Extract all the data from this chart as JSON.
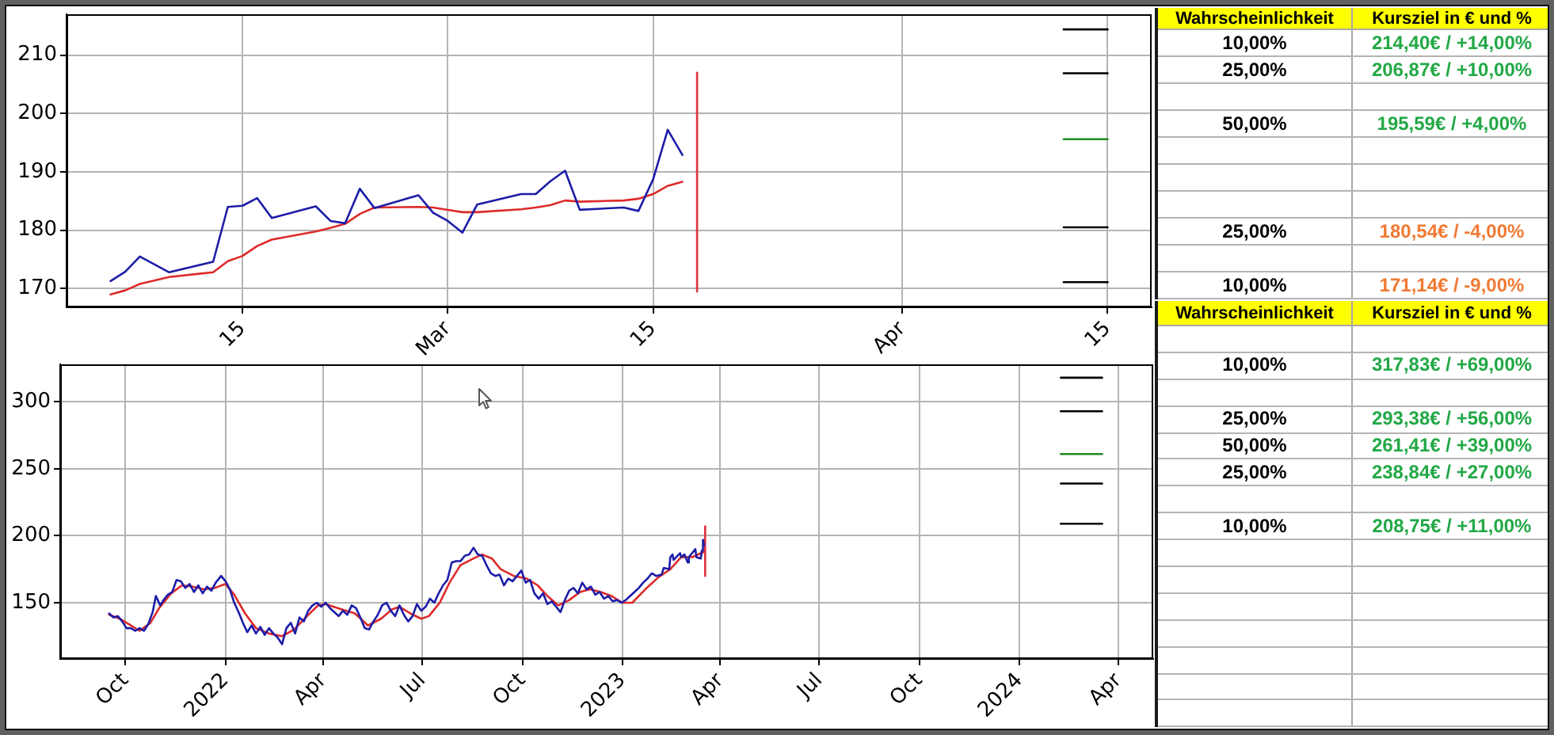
{
  "chart_data": [
    {
      "type": "line",
      "xlim": [
        "2023-02-03",
        "2023-04-18"
      ],
      "ylim": [
        166.8,
        217
      ],
      "xticks": [
        {
          "value": "2023-02-15",
          "label": "15"
        },
        {
          "value": "2023-03-01",
          "label": "Mar"
        },
        {
          "value": "2023-03-15",
          "label": "15"
        },
        {
          "value": "2023-04-01",
          "label": "Apr"
        },
        {
          "value": "2023-04-15",
          "label": "15"
        }
      ],
      "yticks": [
        170,
        180,
        190,
        200,
        210
      ],
      "grid": true,
      "series": [
        {
          "color": "#1c1ca8",
          "x": [
            "2023-02-06",
            "2023-02-07",
            "2023-02-08",
            "2023-02-10",
            "2023-02-13",
            "2023-02-14",
            "2023-02-15",
            "2023-02-16",
            "2023-02-17",
            "2023-02-20",
            "2023-02-21",
            "2023-02-22",
            "2023-02-23",
            "2023-02-24",
            "2023-02-27",
            "2023-02-28",
            "2023-03-01",
            "2023-03-02",
            "2023-03-03",
            "2023-03-06",
            "2023-03-07",
            "2023-03-08",
            "2023-03-09",
            "2023-03-10",
            "2023-03-13",
            "2023-03-14",
            "2023-03-15",
            "2023-03-16",
            "2023-03-17"
          ],
          "values": [
            171.3,
            172.9,
            175.5,
            172.8,
            174.6,
            184.0,
            184.2,
            185.5,
            182.1,
            184.1,
            181.6,
            181.2,
            187.1,
            183.8,
            186.0,
            183.0,
            181.6,
            179.6,
            184.4,
            186.2,
            186.2,
            188.4,
            190.2,
            183.5,
            183.9,
            183.3,
            188.7,
            197.2,
            192.9
          ]
        },
        {
          "color": "#dd2a2a",
          "x": [
            "2023-02-06",
            "2023-02-07",
            "2023-02-08",
            "2023-02-10",
            "2023-02-13",
            "2023-02-14",
            "2023-02-15",
            "2023-02-16",
            "2023-02-17",
            "2023-02-20",
            "2023-02-21",
            "2023-02-22",
            "2023-02-23",
            "2023-02-24",
            "2023-02-27",
            "2023-02-28",
            "2023-03-01",
            "2023-03-02",
            "2023-03-03",
            "2023-03-06",
            "2023-03-07",
            "2023-03-08",
            "2023-03-09",
            "2023-03-10",
            "2023-03-13",
            "2023-03-14",
            "2023-03-15",
            "2023-03-16",
            "2023-03-17"
          ],
          "values": [
            169.0,
            169.7,
            170.8,
            172.0,
            172.8,
            174.7,
            175.6,
            177.3,
            178.4,
            179.8,
            180.4,
            181.1,
            182.8,
            183.9,
            184.0,
            183.9,
            183.5,
            183.1,
            183.1,
            183.6,
            183.9,
            184.3,
            185.1,
            184.9,
            185.1,
            185.4,
            186.2,
            187.6,
            188.3
          ]
        },
        {
          "color": "#e0303c",
          "x": [
            "2023-03-18",
            "2023-03-18"
          ],
          "values": [
            169.5,
            207
          ]
        },
        {
          "color": "#000000",
          "x": [
            "2023-04-12",
            "2023-04-15"
          ],
          "values": [
            214.4,
            214.4
          ]
        },
        {
          "color": "#000000",
          "x": [
            "2023-04-12",
            "2023-04-15"
          ],
          "values": [
            206.9,
            206.9
          ]
        },
        {
          "color": "#1f8a1f",
          "x": [
            "2023-04-12",
            "2023-04-15"
          ],
          "values": [
            195.6,
            195.6
          ]
        },
        {
          "color": "#000000",
          "x": [
            "2023-04-12",
            "2023-04-15"
          ],
          "values": [
            180.5,
            180.5
          ]
        },
        {
          "color": "#000000",
          "x": [
            "2023-04-12",
            "2023-04-15"
          ],
          "values": [
            171.1,
            171.1
          ]
        }
      ]
    },
    {
      "type": "other",
      "annotations": [
        "Wahrscheinlichkeit",
        "Kursziel in € und %"
      ],
      "categories": [
        "10,00%",
        "25,00%",
        "50,00%",
        "25,00%",
        "10,00%"
      ],
      "values": [
        14,
        10,
        4,
        -4,
        -9
      ],
      "value_labels": [
        "214,40€ / +14,00%",
        "206,87€ / +10,00%",
        "195,59€ / +4,00%",
        "180,54€ / -4,00%",
        "171,14€ / -9,00%"
      ]
    },
    {
      "type": "line",
      "xlim": [
        "2021-08-02",
        "2024-05-03"
      ],
      "ylim": [
        108,
        328
      ],
      "xticks": [
        {
          "value": "2021-10-01",
          "label": "Oct"
        },
        {
          "value": "2022-01-01",
          "label": "2022"
        },
        {
          "value": "2022-04-01",
          "label": "Apr"
        },
        {
          "value": "2022-07-01",
          "label": "Jul"
        },
        {
          "value": "2022-10-01",
          "label": "Oct"
        },
        {
          "value": "2023-01-01",
          "label": "2023"
        },
        {
          "value": "2023-04-01",
          "label": "Apr"
        },
        {
          "value": "2023-07-01",
          "label": "Jul"
        },
        {
          "value": "2023-10-01",
          "label": "Oct"
        },
        {
          "value": "2024-01-01",
          "label": "2024"
        },
        {
          "value": "2024-04-01",
          "label": "Apr"
        }
      ],
      "yticks": [
        150,
        200,
        250,
        300
      ],
      "grid": true,
      "series": [
        {
          "color": "#1c1ca8",
          "x": [
            "2021-09-16",
            "2021-09-20",
            "2021-09-24",
            "2021-09-28",
            "2021-10-02",
            "2021-10-06",
            "2021-10-10",
            "2021-10-14",
            "2021-10-18",
            "2021-10-22",
            "2021-10-26",
            "2021-10-29",
            "2021-11-02",
            "2021-11-05",
            "2021-11-09",
            "2021-11-13",
            "2021-11-17",
            "2021-11-21",
            "2021-11-25",
            "2021-11-29",
            "2021-12-03",
            "2021-12-07",
            "2021-12-11",
            "2021-12-15",
            "2021-12-19",
            "2021-12-23",
            "2021-12-28",
            "2022-01-01",
            "2022-01-05",
            "2022-01-09",
            "2022-01-13",
            "2022-01-17",
            "2022-01-21",
            "2022-01-25",
            "2022-01-29",
            "2022-02-02",
            "2022-02-06",
            "2022-02-10",
            "2022-02-14",
            "2022-02-18",
            "2022-02-22",
            "2022-02-26",
            "2022-03-02",
            "2022-03-06",
            "2022-03-10",
            "2022-03-14",
            "2022-03-18",
            "2022-03-22",
            "2022-03-26",
            "2022-03-30",
            "2022-04-03",
            "2022-04-07",
            "2022-04-11",
            "2022-04-15",
            "2022-04-19",
            "2022-04-23",
            "2022-04-27",
            "2022-05-01",
            "2022-05-05",
            "2022-05-09",
            "2022-05-13",
            "2022-05-17",
            "2022-05-21",
            "2022-05-25",
            "2022-05-29",
            "2022-06-02",
            "2022-06-06",
            "2022-06-10",
            "2022-06-14",
            "2022-06-18",
            "2022-06-22",
            "2022-06-26",
            "2022-06-30",
            "2022-07-04",
            "2022-07-08",
            "2022-07-12",
            "2022-07-16",
            "2022-07-20",
            "2022-07-24",
            "2022-07-28",
            "2022-08-01",
            "2022-08-05",
            "2022-08-09",
            "2022-08-13",
            "2022-08-17",
            "2022-08-21",
            "2022-08-25",
            "2022-08-29",
            "2022-09-02",
            "2022-09-06",
            "2022-09-10",
            "2022-09-14",
            "2022-09-18",
            "2022-09-22",
            "2022-09-26",
            "2022-09-30",
            "2022-10-04",
            "2022-10-08",
            "2022-10-12",
            "2022-10-16",
            "2022-10-20",
            "2022-10-24",
            "2022-10-28",
            "2022-11-01",
            "2022-11-05",
            "2022-11-09",
            "2022-11-13",
            "2022-11-17",
            "2022-11-21",
            "2022-11-25",
            "2022-11-29",
            "2022-12-03",
            "2022-12-07",
            "2022-12-11",
            "2022-12-15",
            "2022-12-19",
            "2022-12-23",
            "2022-12-27",
            "2022-12-31",
            "2023-01-04",
            "2023-01-08",
            "2023-01-12",
            "2023-01-16",
            "2023-01-20",
            "2023-01-24",
            "2023-01-28",
            "2023-02-01",
            "2023-02-06",
            "2023-02-08",
            "2023-02-13",
            "2023-02-14",
            "2023-02-16",
            "2023-02-17",
            "2023-02-23",
            "2023-02-24",
            "2023-02-27",
            "2023-03-02",
            "2023-03-03",
            "2023-03-09",
            "2023-03-10",
            "2023-03-14",
            "2023-03-15",
            "2023-03-16",
            "2023-03-17"
          ],
          "values": [
            142,
            139,
            140,
            136,
            131,
            131,
            129,
            131,
            129,
            134,
            143,
            155,
            148,
            152,
            156,
            158,
            167,
            166,
            161,
            164,
            158,
            163,
            157,
            162,
            159,
            165,
            170,
            166,
            160,
            150,
            143,
            135,
            128,
            133,
            127,
            132,
            126,
            131,
            127,
            124,
            119,
            131,
            135,
            127,
            139,
            136,
            144,
            148,
            150,
            147,
            150,
            146,
            143,
            140,
            144,
            141,
            148,
            146,
            139,
            131,
            130,
            136,
            141,
            148,
            150,
            144,
            140,
            148,
            141,
            136,
            140,
            149,
            144,
            147,
            153,
            150,
            157,
            163,
            167,
            180,
            181,
            181,
            185,
            186,
            191,
            186,
            185,
            178,
            172,
            170,
            171,
            163,
            168,
            166,
            170,
            174,
            165,
            167,
            157,
            153,
            157,
            149,
            151,
            147,
            143,
            152,
            159,
            161,
            157,
            165,
            160,
            162,
            156,
            158,
            153,
            155,
            151,
            152,
            150,
            152,
            155,
            158,
            161,
            165,
            168,
            172,
            170,
            171,
            176,
            175,
            184,
            186,
            182,
            187,
            184,
            186,
            180,
            184,
            190,
            184,
            183,
            189,
            197,
            193
          ]
        },
        {
          "color": "#dd2a2a",
          "x": [
            "2021-09-16",
            "2021-09-26",
            "2021-10-06",
            "2021-10-14",
            "2021-10-24",
            "2021-11-01",
            "2021-11-12",
            "2021-11-22",
            "2021-12-02",
            "2021-12-12",
            "2021-12-22",
            "2022-01-01",
            "2022-01-09",
            "2022-01-19",
            "2022-01-29",
            "2022-02-10",
            "2022-02-22",
            "2022-03-05",
            "2022-03-17",
            "2022-03-27",
            "2022-04-03",
            "2022-04-18",
            "2022-04-30",
            "2022-05-12",
            "2022-05-24",
            "2022-06-03",
            "2022-06-10",
            "2022-06-20",
            "2022-06-30",
            "2022-07-07",
            "2022-07-17",
            "2022-07-26",
            "2022-08-05",
            "2022-08-17",
            "2022-08-25",
            "2022-09-03",
            "2022-09-11",
            "2022-09-23",
            "2022-10-05",
            "2022-10-15",
            "2022-10-24",
            "2022-11-03",
            "2022-11-13",
            "2022-11-23",
            "2022-12-02",
            "2022-12-12",
            "2022-12-22",
            "2023-01-01",
            "2023-01-10",
            "2023-01-22",
            "2023-02-03",
            "2023-02-14",
            "2023-02-24",
            "2023-03-06",
            "2023-03-17"
          ],
          "values": [
            141,
            138,
            133,
            129,
            135,
            146,
            157,
            163,
            162,
            160,
            161,
            164,
            156,
            142,
            131,
            127,
            125,
            130,
            140,
            148,
            149,
            145,
            142,
            133,
            138,
            145,
            147,
            142,
            138,
            140,
            150,
            165,
            178,
            183,
            186,
            183,
            175,
            170,
            168,
            163,
            155,
            148,
            152,
            158,
            160,
            158,
            155,
            150,
            150,
            160,
            169,
            175,
            184,
            184,
            188
          ]
        },
        {
          "color": "#e0303c",
          "x": [
            "2023-03-18",
            "2023-03-18"
          ],
          "values": [
            170,
            207
          ]
        },
        {
          "color": "#000000",
          "x": [
            "2024-02-08",
            "2024-03-17"
          ],
          "values": [
            318,
            318
          ]
        },
        {
          "color": "#000000",
          "x": [
            "2024-02-08",
            "2024-03-17"
          ],
          "values": [
            293,
            293
          ]
        },
        {
          "color": "#1f8a1f",
          "x": [
            "2024-02-08",
            "2024-03-17"
          ],
          "values": [
            261,
            261
          ]
        },
        {
          "color": "#000000",
          "x": [
            "2024-02-08",
            "2024-03-17"
          ],
          "values": [
            239,
            239
          ]
        },
        {
          "color": "#000000",
          "x": [
            "2024-02-08",
            "2024-03-17"
          ],
          "values": [
            209,
            209
          ]
        }
      ]
    },
    {
      "type": "other",
      "annotations": [
        "Wahrscheinlichkeit",
        "Kursziel in € und %"
      ],
      "categories": [
        "10,00%",
        "25,00%",
        "50,00%",
        "25,00%",
        "10,00%"
      ],
      "values": [
        69,
        56,
        39,
        27,
        11
      ],
      "value_labels": [
        "317,83€ / +69,00%",
        "293,38€ / +56,00%",
        "261,41€ / +39,00%",
        "238,84€ / +27,00%",
        "208,75€ / +11,00%"
      ]
    }
  ]
}
